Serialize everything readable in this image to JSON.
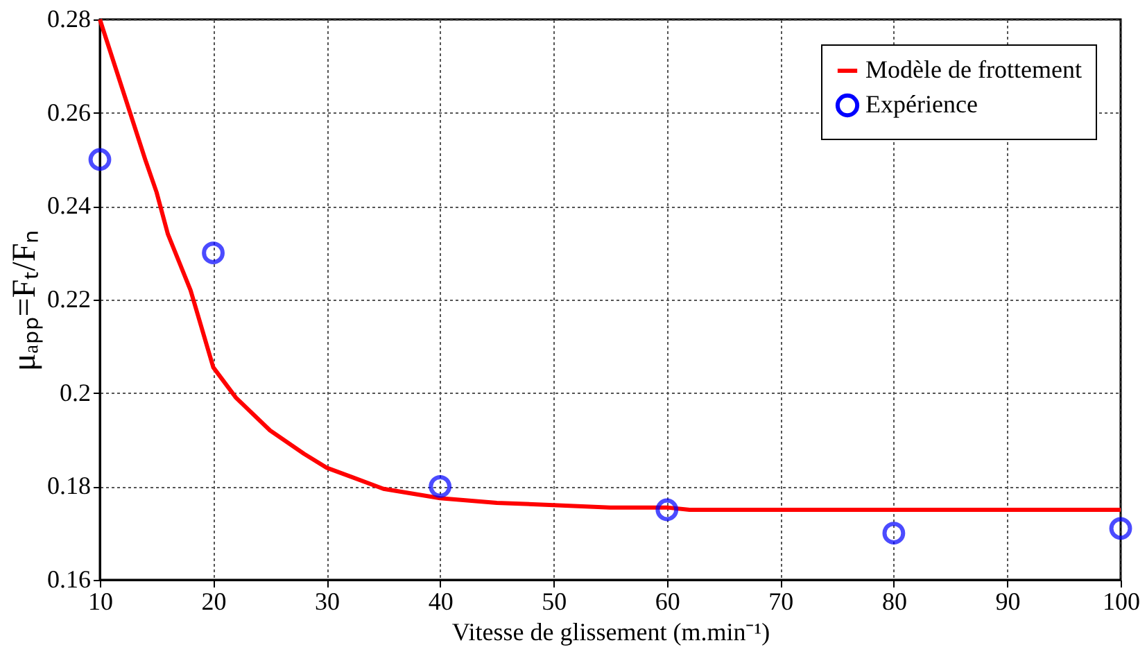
{
  "chart_data": {
    "type": "line",
    "xlabel": "Vitesse de glissement (m.min⁻¹)",
    "ylabel": "μₐₚₚ=Fₜ/Fₙ",
    "xlim": [
      10,
      100
    ],
    "xticks": [
      10,
      20,
      30,
      40,
      50,
      60,
      70,
      80,
      90,
      100
    ],
    "ylim": [
      0.16,
      0.28
    ],
    "yticks": [
      0.16,
      0.18,
      0.2,
      0.22,
      0.24,
      0.26,
      0.28
    ],
    "grid": true,
    "legend": "top right",
    "series": [
      {
        "name": "Modèle de frottement",
        "color": "#ff0000",
        "marker": "none",
        "line_style": "solid",
        "x": [
          10,
          12,
          14,
          15,
          16,
          18,
          20,
          22,
          25,
          28,
          30,
          35,
          40,
          45,
          50,
          55,
          60,
          62,
          100
        ],
        "values": [
          0.28,
          0.265,
          0.25,
          0.243,
          0.234,
          0.222,
          0.2055,
          0.199,
          0.192,
          0.187,
          0.184,
          0.1795,
          0.1775,
          0.1765,
          0.176,
          0.1755,
          0.1755,
          0.175,
          0.175
        ]
      },
      {
        "name": "Expérience",
        "type": "scatter",
        "color": "#0000ff",
        "marker": "circle",
        "x": [
          10,
          20,
          40,
          60,
          80,
          100
        ],
        "values": [
          0.25,
          0.23,
          0.18,
          0.175,
          0.17,
          0.171
        ]
      }
    ]
  }
}
